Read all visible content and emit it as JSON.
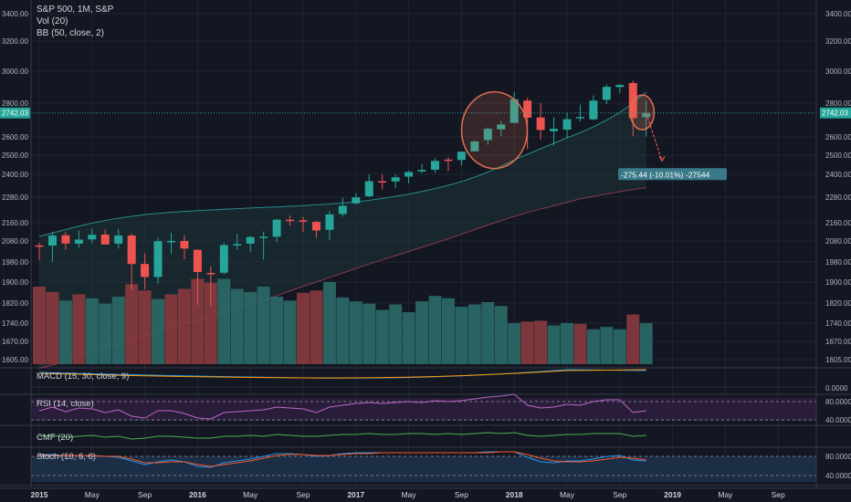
{
  "header": {
    "title": "S&P 500, 1M, S&P",
    "vol_label": "Vol (20)",
    "bb_label": "BB (50, close, 2)"
  },
  "colors": {
    "background": "#131722",
    "grid": "#1f2433",
    "up": "#26a69a",
    "down": "#ef5350",
    "vol_up": "#2b6a68",
    "vol_down": "#8a3b3f",
    "bb_upper": "#2a8a8a",
    "bb_basis": "#8a3a4a",
    "macd_pane": "#131722",
    "rsi_fill": "#2a1d3a",
    "stoch_fill": "#1c2e45",
    "annotation_box": "#3a7a88",
    "ellipse": "#e07050"
  },
  "chart_data": {
    "type": "candlestick",
    "symbol": "S&P 500",
    "interval": "1M",
    "price_axis_ticks": [
      "3400.00",
      "3200.00",
      "3000.00",
      "2800.00",
      "2600.00",
      "2500.00",
      "2400.00",
      "2280.00",
      "2160.00",
      "2080.00",
      "1980.00",
      "1900.00",
      "1820.00",
      "1740.00",
      "1670.00",
      "1605.00"
    ],
    "last_price_label": "2742.03",
    "x_axis_labels": [
      "2015",
      "May",
      "Sep",
      "2016",
      "May",
      "Sep",
      "2017",
      "May",
      "Sep",
      "2018",
      "May",
      "Sep",
      "2019",
      "May",
      "Sep"
    ],
    "candles": [
      {
        "o": 2059,
        "h": 2072,
        "l": 1988,
        "c": 2058
      },
      {
        "o": 2058,
        "h": 2120,
        "l": 1980,
        "c": 2104
      },
      {
        "o": 2105,
        "h": 2119,
        "l": 2039,
        "c": 2068
      },
      {
        "o": 2067,
        "h": 2125,
        "l": 2048,
        "c": 2086
      },
      {
        "o": 2087,
        "h": 2135,
        "l": 2068,
        "c": 2107
      },
      {
        "o": 2108,
        "h": 2130,
        "l": 2067,
        "c": 2063
      },
      {
        "o": 2067,
        "h": 2132,
        "l": 2044,
        "c": 2104
      },
      {
        "o": 2104,
        "h": 2113,
        "l": 1868,
        "c": 1972
      },
      {
        "o": 1972,
        "h": 2021,
        "l": 1872,
        "c": 1920
      },
      {
        "o": 1920,
        "h": 2094,
        "l": 1894,
        "c": 2079
      },
      {
        "o": 2079,
        "h": 2116,
        "l": 2020,
        "c": 2080
      },
      {
        "o": 2080,
        "h": 2105,
        "l": 1993,
        "c": 2044
      },
      {
        "o": 2038,
        "h": 2039,
        "l": 1812,
        "c": 1940
      },
      {
        "o": 1936,
        "h": 1962,
        "l": 1810,
        "c": 1932
      },
      {
        "o": 1937,
        "h": 2072,
        "l": 1931,
        "c": 2060
      },
      {
        "o": 2060,
        "h": 2111,
        "l": 2039,
        "c": 2065
      },
      {
        "o": 2067,
        "h": 2103,
        "l": 2025,
        "c": 2097
      },
      {
        "o": 2094,
        "h": 2121,
        "l": 1992,
        "c": 2099
      },
      {
        "o": 2099,
        "h": 2178,
        "l": 2074,
        "c": 2174
      },
      {
        "o": 2174,
        "h": 2194,
        "l": 2147,
        "c": 2171
      },
      {
        "o": 2171,
        "h": 2188,
        "l": 2120,
        "c": 2168
      },
      {
        "o": 2164,
        "h": 2170,
        "l": 2093,
        "c": 2126
      },
      {
        "o": 2129,
        "h": 2214,
        "l": 2084,
        "c": 2199
      },
      {
        "o": 2201,
        "h": 2278,
        "l": 2188,
        "c": 2239
      },
      {
        "o": 2251,
        "h": 2301,
        "l": 2245,
        "c": 2279
      },
      {
        "o": 2285,
        "h": 2401,
        "l": 2278,
        "c": 2364
      },
      {
        "o": 2364,
        "h": 2401,
        "l": 2322,
        "c": 2363
      },
      {
        "o": 2363,
        "h": 2399,
        "l": 2328,
        "c": 2384
      },
      {
        "o": 2388,
        "h": 2418,
        "l": 2352,
        "c": 2412
      },
      {
        "o": 2415,
        "h": 2454,
        "l": 2405,
        "c": 2423
      },
      {
        "o": 2424,
        "h": 2484,
        "l": 2407,
        "c": 2470
      },
      {
        "o": 2477,
        "h": 2490,
        "l": 2417,
        "c": 2472
      },
      {
        "o": 2475,
        "h": 2519,
        "l": 2446,
        "c": 2519
      },
      {
        "o": 2521,
        "h": 2582,
        "l": 2520,
        "c": 2575
      },
      {
        "o": 2583,
        "h": 2657,
        "l": 2557,
        "c": 2648
      },
      {
        "o": 2645,
        "h": 2694,
        "l": 2605,
        "c": 2674
      },
      {
        "o": 2683,
        "h": 2873,
        "l": 2682,
        "c": 2824
      },
      {
        "o": 2816,
        "h": 2835,
        "l": 2533,
        "c": 2714
      },
      {
        "o": 2715,
        "h": 2801,
        "l": 2585,
        "c": 2641
      },
      {
        "o": 2634,
        "h": 2717,
        "l": 2553,
        "c": 2648
      },
      {
        "o": 2643,
        "h": 2742,
        "l": 2594,
        "c": 2705
      },
      {
        "o": 2718,
        "h": 2791,
        "l": 2691,
        "c": 2718
      },
      {
        "o": 2704,
        "h": 2848,
        "l": 2698,
        "c": 2816
      },
      {
        "o": 2821,
        "h": 2917,
        "l": 2795,
        "c": 2902
      },
      {
        "o": 2901,
        "h": 2917,
        "l": 2864,
        "c": 2914
      },
      {
        "o": 2926,
        "h": 2941,
        "l": 2604,
        "c": 2712
      },
      {
        "o": 2717,
        "h": 2816,
        "l": 2603,
        "c": 2742
      }
    ],
    "bollinger": {
      "upper": [
        2100,
        2115,
        2130,
        2145,
        2158,
        2170,
        2181,
        2190,
        2198,
        2204,
        2209,
        2213,
        2217,
        2220,
        2223,
        2226,
        2229,
        2232,
        2234,
        2237,
        2240,
        2244,
        2248,
        2253,
        2258,
        2265,
        2274,
        2284,
        2296,
        2310,
        2325,
        2342,
        2362,
        2385,
        2412,
        2442,
        2475,
        2505,
        2535,
        2565,
        2595,
        2625,
        2660,
        2700,
        2745,
        2800,
        2870
      ],
      "basis": [
        1575,
        1585,
        1600,
        1615,
        1630,
        1645,
        1660,
        1675,
        1690,
        1705,
        1720,
        1735,
        1750,
        1765,
        1780,
        1795,
        1812,
        1830,
        1848,
        1866,
        1884,
        1900,
        1918,
        1936,
        1954,
        1972,
        1990,
        2010,
        2030,
        2050,
        2070,
        2090,
        2110,
        2130,
        2150,
        2170,
        2190,
        2208,
        2224,
        2240,
        2256,
        2272,
        2285,
        2297,
        2309,
        2320,
        2330
      ]
    },
    "volume": [
      {
        "v": 1.0,
        "up": false
      },
      {
        "v": 0.93,
        "up": false
      },
      {
        "v": 0.82,
        "up": true
      },
      {
        "v": 0.9,
        "up": false
      },
      {
        "v": 0.85,
        "up": true
      },
      {
        "v": 0.78,
        "up": true
      },
      {
        "v": 0.87,
        "up": true
      },
      {
        "v": 1.03,
        "up": false
      },
      {
        "v": 0.95,
        "up": false
      },
      {
        "v": 0.84,
        "up": true
      },
      {
        "v": 0.9,
        "up": false
      },
      {
        "v": 0.97,
        "up": false
      },
      {
        "v": 1.1,
        "up": false
      },
      {
        "v": 1.05,
        "up": false
      },
      {
        "v": 1.1,
        "up": true
      },
      {
        "v": 0.97,
        "up": true
      },
      {
        "v": 0.93,
        "up": true
      },
      {
        "v": 1.0,
        "up": true
      },
      {
        "v": 0.87,
        "up": true
      },
      {
        "v": 0.82,
        "up": true
      },
      {
        "v": 0.92,
        "up": false
      },
      {
        "v": 0.95,
        "up": false
      },
      {
        "v": 1.06,
        "up": true
      },
      {
        "v": 0.86,
        "up": true
      },
      {
        "v": 0.81,
        "up": true
      },
      {
        "v": 0.78,
        "up": true
      },
      {
        "v": 0.7,
        "up": true
      },
      {
        "v": 0.77,
        "up": true
      },
      {
        "v": 0.67,
        "up": true
      },
      {
        "v": 0.81,
        "up": true
      },
      {
        "v": 0.88,
        "up": true
      },
      {
        "v": 0.85,
        "up": true
      },
      {
        "v": 0.74,
        "up": true
      },
      {
        "v": 0.77,
        "up": true
      },
      {
        "v": 0.8,
        "up": true
      },
      {
        "v": 0.75,
        "up": true
      },
      {
        "v": 0.53,
        "up": true
      },
      {
        "v": 0.55,
        "up": false
      },
      {
        "v": 0.56,
        "up": false
      },
      {
        "v": 0.5,
        "up": true
      },
      {
        "v": 0.53,
        "up": true
      },
      {
        "v": 0.52,
        "up": false
      },
      {
        "v": 0.45,
        "up": true
      },
      {
        "v": 0.48,
        "up": true
      },
      {
        "v": 0.45,
        "up": true
      },
      {
        "v": 0.64,
        "up": false
      },
      {
        "v": 0.53,
        "up": true
      }
    ],
    "annotation": {
      "text": "-275.44 (-10.01%) -27544"
    },
    "panes": {
      "macd": {
        "label": "MACD (15, 30, close, 9)",
        "ticks": [
          "0.0000"
        ]
      },
      "rsi": {
        "label": "RSI (14, close)",
        "ticks": [
          "80.0000",
          "40.0000"
        ]
      },
      "cmf": {
        "label": "CMF (20)",
        "ticks": []
      },
      "stoch": {
        "label": "Stoch (10, 6, 6)",
        "ticks": [
          "80.0000",
          "40.0000"
        ]
      }
    }
  }
}
